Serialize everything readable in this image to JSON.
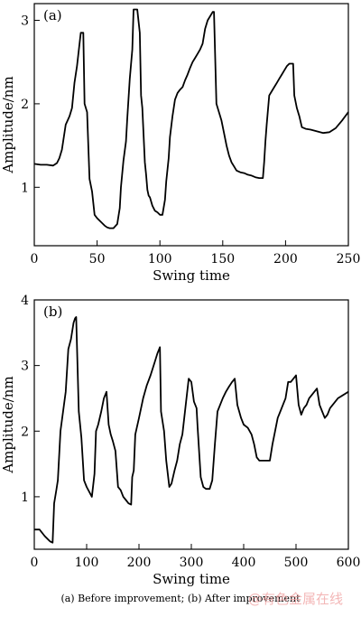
{
  "chart_data": [
    {
      "type": "line",
      "panel_label": "(a)",
      "xlabel": "Swing time",
      "ylabel": "Amplitude/nm",
      "xlim": [
        0,
        250
      ],
      "ylim": [
        0.3,
        3.2
      ],
      "xticks": [
        0,
        50,
        100,
        150,
        200,
        250
      ],
      "yticks": [
        1,
        2,
        3
      ],
      "grid": false,
      "x": [
        0,
        5,
        10,
        15,
        18,
        20,
        22,
        25,
        28,
        30,
        32,
        34,
        37,
        39,
        40,
        42,
        44,
        46,
        48,
        50,
        52,
        54,
        56,
        58,
        60,
        63,
        66,
        68,
        69,
        71,
        73,
        74,
        76,
        78,
        79,
        80,
        82,
        84,
        85,
        86,
        88,
        89,
        90,
        91,
        92,
        94,
        96,
        98,
        100,
        102,
        104,
        105,
        107,
        108,
        110,
        112,
        114,
        116,
        118,
        120,
        122,
        124,
        126,
        128,
        130,
        132,
        134,
        136,
        138,
        140,
        142,
        143,
        145,
        147,
        149,
        151,
        153,
        155,
        157,
        159,
        161,
        164,
        167,
        170,
        173,
        176,
        179,
        181,
        182,
        183,
        184,
        185,
        187,
        189,
        191,
        193,
        195,
        197,
        199,
        201,
        203,
        205,
        206,
        207,
        209,
        211,
        213,
        216,
        220,
        225,
        230,
        235,
        240,
        245,
        250
      ],
      "y": [
        1.28,
        1.27,
        1.27,
        1.26,
        1.29,
        1.35,
        1.45,
        1.75,
        1.85,
        1.95,
        2.25,
        2.45,
        2.85,
        2.85,
        2.0,
        1.9,
        1.1,
        0.95,
        0.67,
        0.63,
        0.6,
        0.57,
        0.54,
        0.52,
        0.51,
        0.51,
        0.56,
        0.75,
        1.0,
        1.32,
        1.55,
        1.82,
        2.3,
        2.65,
        3.13,
        3.13,
        3.13,
        2.85,
        2.1,
        1.95,
        1.3,
        1.15,
        0.97,
        0.9,
        0.88,
        0.78,
        0.72,
        0.7,
        0.67,
        0.67,
        0.85,
        1.07,
        1.35,
        1.6,
        1.85,
        2.05,
        2.13,
        2.17,
        2.2,
        2.28,
        2.35,
        2.43,
        2.5,
        2.55,
        2.6,
        2.65,
        2.72,
        2.9,
        3.0,
        3.05,
        3.1,
        3.1,
        2.0,
        1.9,
        1.8,
        1.65,
        1.5,
        1.38,
        1.3,
        1.25,
        1.2,
        1.18,
        1.17,
        1.15,
        1.14,
        1.12,
        1.11,
        1.11,
        1.11,
        1.3,
        1.55,
        1.75,
        2.1,
        2.15,
        2.2,
        2.25,
        2.3,
        2.35,
        2.4,
        2.45,
        2.48,
        2.48,
        2.48,
        2.1,
        1.95,
        1.85,
        1.72,
        1.7,
        1.69,
        1.67,
        1.65,
        1.66,
        1.71,
        1.8,
        1.9
      ]
    },
    {
      "type": "line",
      "panel_label": "(b)",
      "xlabel": "Swing time",
      "ylabel": "Amplitude/nm",
      "xlim": [
        0,
        600
      ],
      "ylim": [
        0.2,
        4.0
      ],
      "xticks": [
        0,
        100,
        200,
        300,
        400,
        500,
        600
      ],
      "yticks": [
        1,
        2,
        3,
        4
      ],
      "grid": false,
      "x": [
        0,
        10,
        20,
        30,
        35,
        38,
        42,
        45,
        50,
        55,
        60,
        65,
        70,
        75,
        78,
        80,
        85,
        90,
        95,
        100,
        110,
        115,
        118,
        122,
        128,
        133,
        138,
        142,
        146,
        150,
        155,
        160,
        165,
        170,
        175,
        180,
        185,
        187,
        190,
        193,
        200,
        208,
        215,
        222,
        230,
        235,
        240,
        242,
        248,
        252,
        258,
        262,
        268,
        273,
        278,
        283,
        290,
        295,
        300,
        305,
        310,
        312,
        318,
        323,
        328,
        335,
        340,
        345,
        350,
        355,
        360,
        366,
        372,
        378,
        383,
        388,
        395,
        400,
        408,
        415,
        420,
        425,
        430,
        440,
        450,
        455,
        460,
        465,
        470,
        475,
        480,
        485,
        490,
        495,
        500,
        505,
        510,
        515,
        520,
        525,
        530,
        535,
        540,
        545,
        550,
        555,
        560,
        565,
        570,
        575,
        580,
        590,
        600
      ],
      "y": [
        0.5,
        0.5,
        0.4,
        0.32,
        0.3,
        0.9,
        1.1,
        1.25,
        2.0,
        2.3,
        2.6,
        3.25,
        3.4,
        3.65,
        3.72,
        3.74,
        2.3,
        1.9,
        1.25,
        1.15,
        1.0,
        1.35,
        2.0,
        2.1,
        2.3,
        2.5,
        2.6,
        2.1,
        1.95,
        1.85,
        1.7,
        1.15,
        1.1,
        1.0,
        0.95,
        0.9,
        0.88,
        1.3,
        1.4,
        1.95,
        2.2,
        2.5,
        2.7,
        2.85,
        3.05,
        3.18,
        3.28,
        2.3,
        2.0,
        1.55,
        1.15,
        1.2,
        1.4,
        1.55,
        1.8,
        1.95,
        2.45,
        2.8,
        2.75,
        2.45,
        2.35,
        2.05,
        1.3,
        1.15,
        1.12,
        1.12,
        1.25,
        1.8,
        2.3,
        2.4,
        2.5,
        2.6,
        2.68,
        2.75,
        2.8,
        2.4,
        2.2,
        2.1,
        2.05,
        1.95,
        1.8,
        1.6,
        1.55,
        1.55,
        1.55,
        1.8,
        2.0,
        2.2,
        2.3,
        2.4,
        2.5,
        2.75,
        2.75,
        2.8,
        2.85,
        2.4,
        2.25,
        2.35,
        2.4,
        2.5,
        2.55,
        2.6,
        2.65,
        2.4,
        2.3,
        2.2,
        2.25,
        2.35,
        2.4,
        2.45,
        2.5,
        2.55,
        2.6
      ]
    }
  ],
  "caption": "(a) Before improvement; (b) After improvement",
  "watermark": "@有色金属在线"
}
